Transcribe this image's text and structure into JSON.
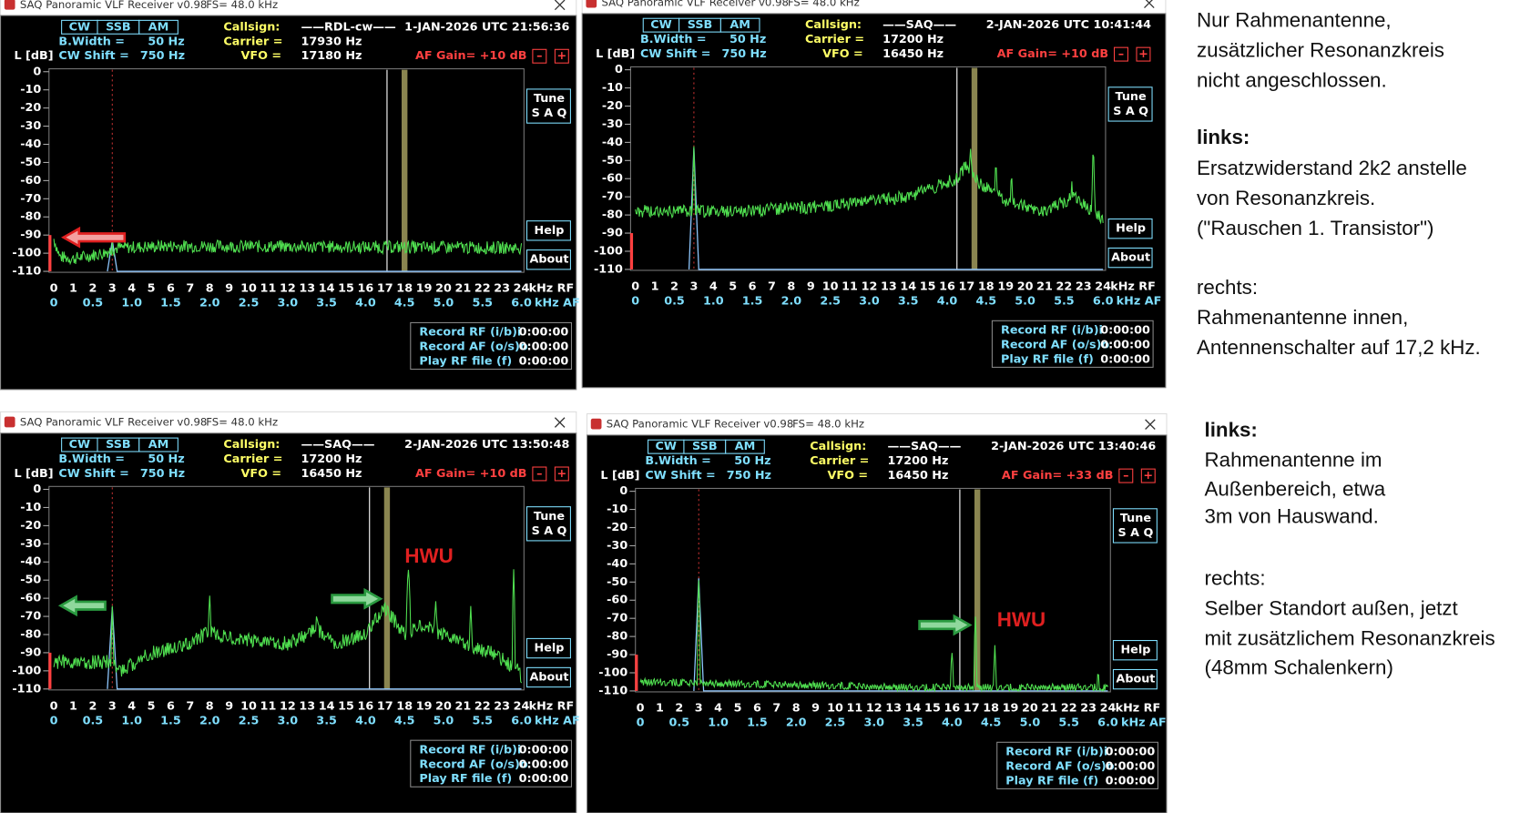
{
  "ui": {
    "window_title": "SAQ Panoramic VLF Receiver v0.98",
    "fs": "FS=  48.0 kHz",
    "modes": [
      "CW",
      "SSB",
      "AM"
    ],
    "bwidth_label": "B.Width  =",
    "shift_label": "CW  Shift =",
    "level_label": "L [dB]",
    "callsign_label": "Callsign:",
    "carrier_label": "Carrier =",
    "vfo_label": "VFO =",
    "minus": "–",
    "plus": "+",
    "tune": [
      "Tune",
      "S A Q"
    ],
    "help": "Help",
    "about": "About",
    "rf_unit": "kHz RF",
    "af_unit": "kHz AF",
    "y_ticks": [
      "0",
      "-10",
      "-20",
      "-30",
      "-40",
      "-50",
      "-60",
      "-70",
      "-80",
      "-90",
      "-100",
      "-110"
    ],
    "rf_ticks": [
      "0",
      "1",
      "2",
      "3",
      "4",
      "5",
      "6",
      "7",
      "8",
      "9",
      "10",
      "11",
      "12",
      "13",
      "14",
      "15",
      "16",
      "17",
      "18",
      "19",
      "20",
      "21",
      "22",
      "23",
      "24"
    ],
    "af_ticks": [
      "0",
      "0.5",
      "1.0",
      "1.5",
      "2.0",
      "2.5",
      "3.0",
      "3.5",
      "4.0",
      "4.5",
      "5.0",
      "5.5",
      "6.0"
    ],
    "record_labels": [
      "Record  RF (i/b)i",
      "Record  AF (o/s)o",
      "Play RF file (f)"
    ],
    "record_times": [
      "0:00:00",
      "0:00:00",
      "0:00:00"
    ]
  },
  "panels": [
    {
      "callsign": "——RDL-cw——",
      "carrier": "17930 Hz",
      "vfo": "17180 Hz",
      "bandwidth": "50 Hz",
      "shift": "750 Hz",
      "datetime": "1-JAN-2026 UTC 21:56:36",
      "af_gain": "AF Gain= +10 dB",
      "annotations": []
    },
    {
      "callsign": "——SAQ——",
      "carrier": "17200 Hz",
      "vfo": "16450 Hz",
      "bandwidth": "50 Hz",
      "shift": "750 Hz",
      "datetime": "2-JAN-2026 UTC 10:41:44",
      "af_gain": "AF Gain= +10 dB",
      "annotations": []
    },
    {
      "callsign": "——SAQ——",
      "carrier": "17200 Hz",
      "vfo": "16450 Hz",
      "bandwidth": "50 Hz",
      "shift": "750 Hz",
      "datetime": "2-JAN-2026 UTC 13:50:48",
      "af_gain": "AF Gain= +10 dB",
      "annotations": [
        "HWU"
      ]
    },
    {
      "callsign": "——SAQ——",
      "carrier": "17200 Hz",
      "vfo": "16450 Hz",
      "bandwidth": "50 Hz",
      "shift": "750 Hz",
      "datetime": "2-JAN-2026 UTC 13:40:46",
      "af_gain": "AF Gain= +33 dB",
      "annotations": [
        "HWU"
      ]
    }
  ],
  "notes": [
    {
      "lines": [
        "Nur Rahmenantenne,",
        "zusätzlicher Resonanzkreis",
        "nicht angeschlossen.",
        "links:",
        "Ersatzwiderstand 2k2 anstelle",
        "von Resonanzkreis.",
        "(\"Rauschen 1. Transistor\")",
        "rechts:",
        "Rahmenantenne innen,",
        "Antennenschalter auf 17,2 kHz."
      ]
    },
    {
      "lines": [
        "links:",
        "Rahmenantenne im",
        "Außenbereich, etwa",
        "3m von Hauswand.",
        "rechts:",
        "Selber Standort außen, jetzt",
        "mit zusätzlichem Resonanzkreis",
        "(48mm Schalenkern)"
      ]
    }
  ]
}
